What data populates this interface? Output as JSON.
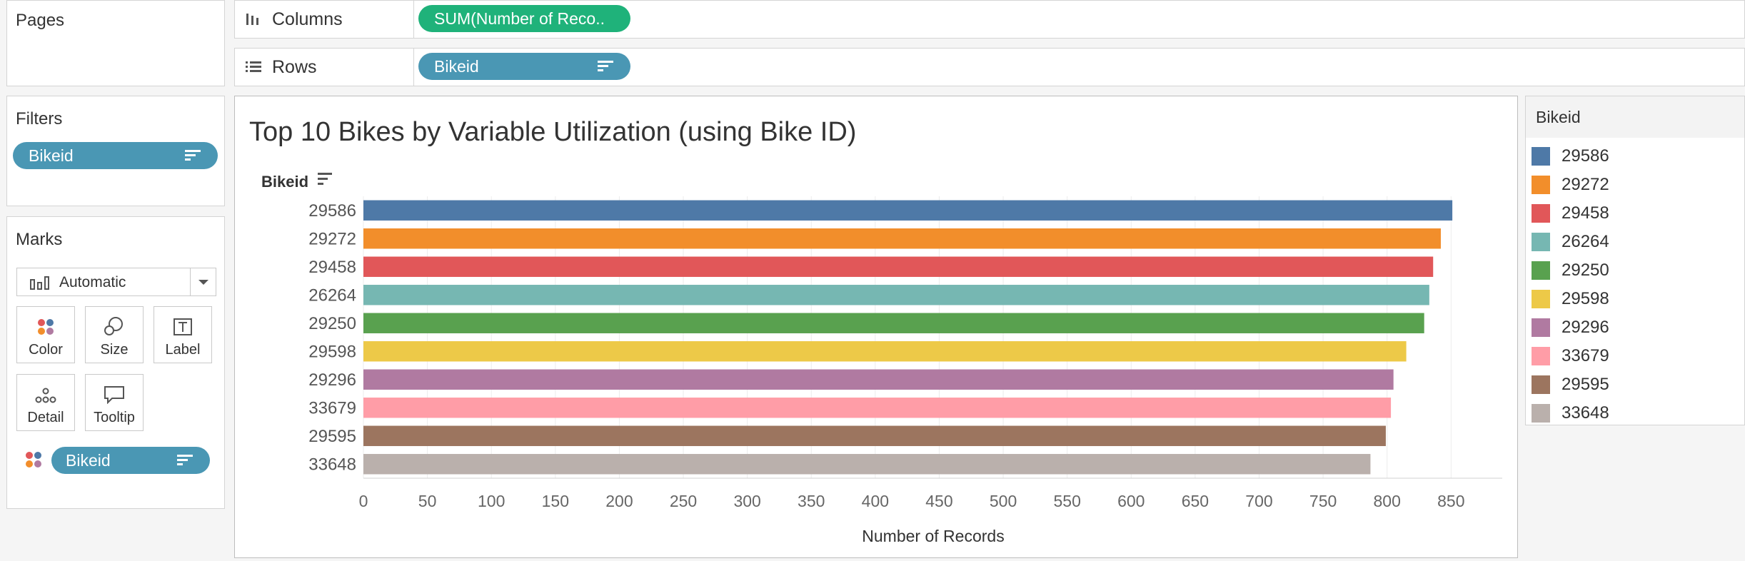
{
  "shelves": {
    "pages_title": "Pages",
    "columns_label": "Columns",
    "columns_pill": "SUM(Number of Reco..",
    "rows_label": "Rows",
    "rows_pill": "Bikeid"
  },
  "filters": {
    "title": "Filters",
    "pill": "Bikeid"
  },
  "marks": {
    "title": "Marks",
    "type": "Automatic",
    "buttons": {
      "color": "Color",
      "size": "Size",
      "label": "Label",
      "detail": "Detail",
      "tooltip": "Tooltip"
    },
    "color_pill": "Bikeid"
  },
  "legend": {
    "title": "Bikeid",
    "items": [
      {
        "label": "29586",
        "color": "#4e79a7"
      },
      {
        "label": "29272",
        "color": "#f28e2b"
      },
      {
        "label": "29458",
        "color": "#e15759"
      },
      {
        "label": "26264",
        "color": "#76b7b2"
      },
      {
        "label": "29250",
        "color": "#59a14f"
      },
      {
        "label": "29598",
        "color": "#edc948"
      },
      {
        "label": "29296",
        "color": "#b07aa1"
      },
      {
        "label": "33679",
        "color": "#ff9da7"
      },
      {
        "label": "29595",
        "color": "#9c755f"
      },
      {
        "label": "33648",
        "color": "#bab0ac"
      }
    ]
  },
  "chart_data": {
    "type": "bar",
    "orientation": "horizontal",
    "title": "Top 10 Bikes by Variable Utilization (using Bike ID)",
    "ylabel": "Bikeid",
    "xlabel": "Number of Records",
    "categories": [
      "29586",
      "29272",
      "29458",
      "26264",
      "29250",
      "29598",
      "29296",
      "33679",
      "29595",
      "33648"
    ],
    "values": [
      851,
      842,
      836,
      833,
      829,
      815,
      805,
      803,
      799,
      787
    ],
    "colors": [
      "#4e79a7",
      "#f28e2b",
      "#e15759",
      "#76b7b2",
      "#59a14f",
      "#edc948",
      "#b07aa1",
      "#ff9da7",
      "#9c755f",
      "#bab0ac"
    ],
    "xlim": [
      0,
      890
    ],
    "xticks": [
      0,
      50,
      100,
      150,
      200,
      250,
      300,
      350,
      400,
      450,
      500,
      550,
      600,
      650,
      700,
      750,
      800,
      850
    ],
    "grid": "vertical"
  }
}
